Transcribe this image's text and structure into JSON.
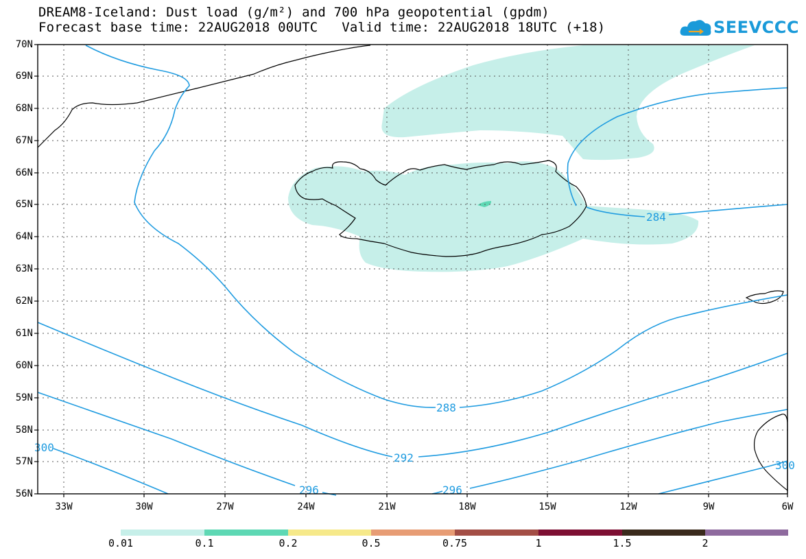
{
  "header": {
    "title_line1": "DREAM8-Iceland: Dust load (g/m²) and 700 hPa geopotential (gpdm)",
    "title_line2": "Forecast base time: 22AUG2018 00UTC   Valid time: 22AUG2018 18UTC (+18)"
  },
  "logo": {
    "text": "SEEVCCC",
    "color": "#1a9ad9"
  },
  "map": {
    "lat_labels": [
      "70N",
      "69N",
      "68N",
      "67N",
      "66N",
      "65N",
      "64N",
      "63N",
      "62N",
      "61N",
      "60N",
      "59N",
      "58N",
      "57N",
      "56N"
    ],
    "lon_labels": [
      "33W",
      "30W",
      "27W",
      "24W",
      "21W",
      "18W",
      "15W",
      "12W",
      "9W",
      "6W"
    ],
    "contour_labels": [
      "284",
      "288",
      "292",
      "296",
      "296",
      "300",
      "300"
    ],
    "contour_color": "#1e9be0",
    "dust_color": "#c6efe9",
    "dust_dense_color": "#5ed8b4"
  },
  "colorbar": {
    "labels": [
      "0.01",
      "0.1",
      "0.2",
      "0.5",
      "0.75",
      "1",
      "1.5",
      "2"
    ],
    "colors": [
      "#c6efe9",
      "#5ed8b4",
      "#f6e98a",
      "#e79c74",
      "#a34e45",
      "#7d0f32",
      "#3a2a1c",
      "#8e6a9e"
    ]
  }
}
